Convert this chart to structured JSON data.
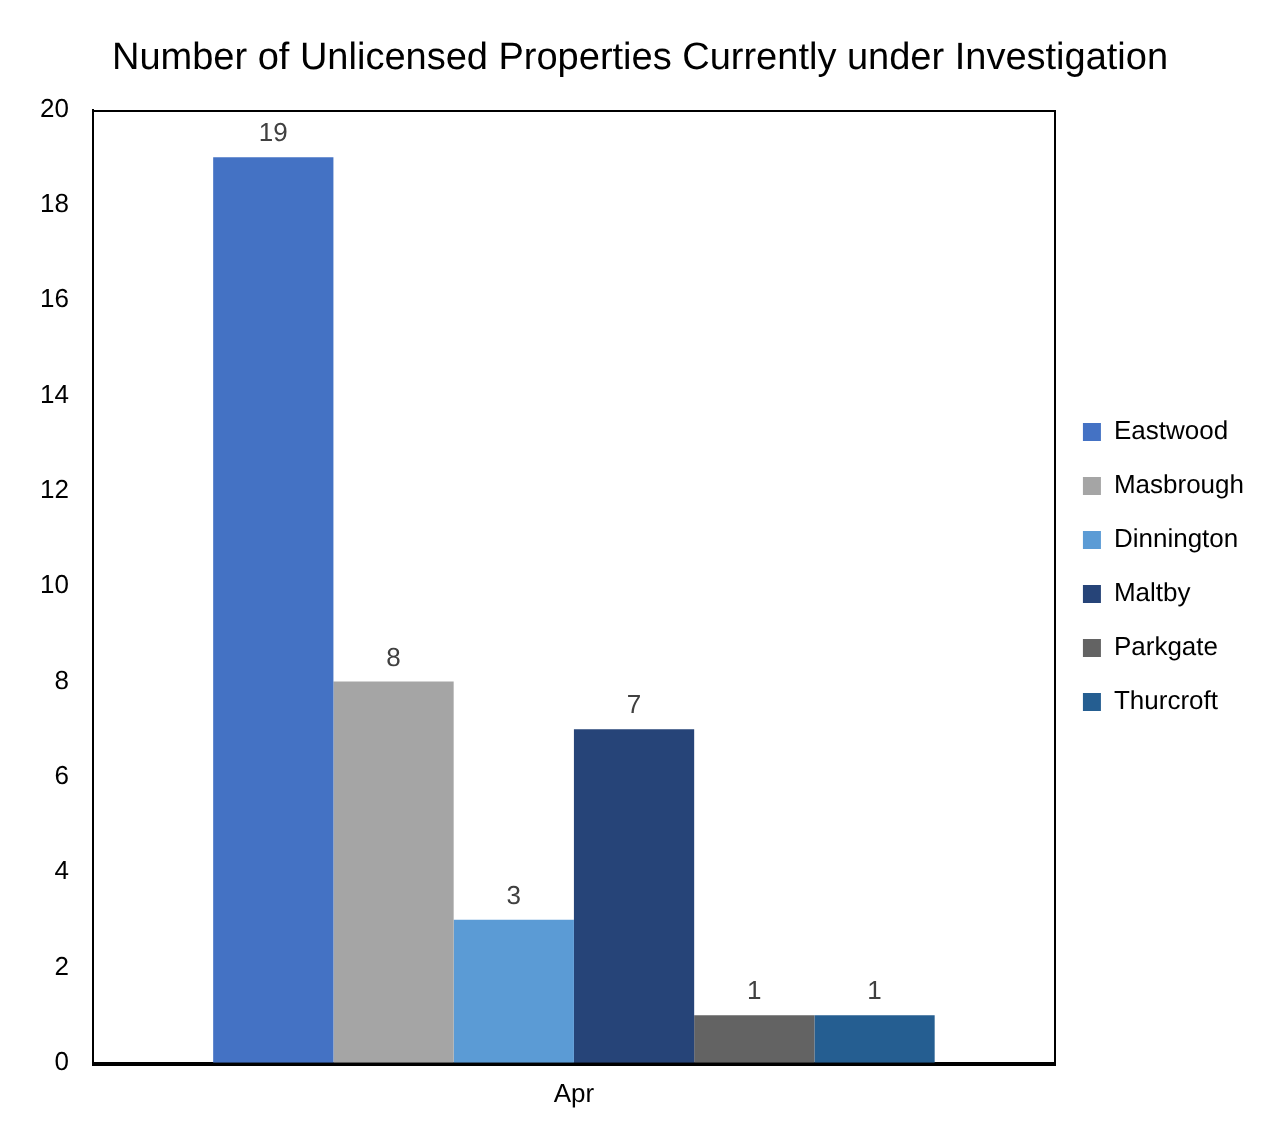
{
  "chart_data": {
    "type": "bar",
    "title": "Number of Unlicensed Properties Currently under Investigation",
    "categories": [
      "Apr"
    ],
    "series": [
      {
        "name": "Eastwood",
        "color": "#4472c4",
        "values": [
          19
        ]
      },
      {
        "name": "Masbrough",
        "color": "#a5a5a5",
        "values": [
          8
        ]
      },
      {
        "name": "Dinnington",
        "color": "#5b9bd5",
        "values": [
          3
        ]
      },
      {
        "name": "Maltby",
        "color": "#264478",
        "values": [
          7
        ]
      },
      {
        "name": "Parkgate",
        "color": "#636363",
        "values": [
          1
        ]
      },
      {
        "name": "Thurcroft",
        "color": "#255e91",
        "values": [
          1
        ]
      }
    ],
    "ylim": [
      0,
      20
    ],
    "yticks": [
      0,
      2,
      4,
      6,
      8,
      10,
      12,
      14,
      16,
      18,
      20
    ],
    "grid": false,
    "legend": "right",
    "data_labels": true
  }
}
